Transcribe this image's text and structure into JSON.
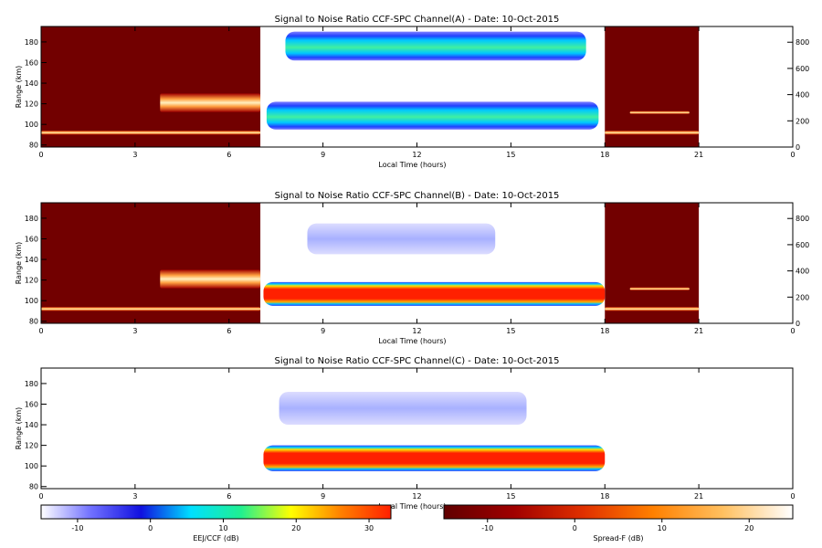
{
  "chart_data": [
    {
      "type": "heatmap",
      "title": "Signal to Noise Ratio CCF-SPC Channel(A) - Date: 10-Oct-2015",
      "xlabel": "Local Time (hours)",
      "ylabel": "Range (km)",
      "xlim": [
        0,
        24
      ],
      "ylim": [
        78,
        195
      ],
      "xticks": [
        "0",
        "3",
        "6",
        "9",
        "12",
        "15",
        "18",
        "21",
        "0"
      ],
      "yticks": [
        80,
        100,
        120,
        140,
        160,
        180
      ],
      "y2ticks": [
        0,
        200,
        400,
        600,
        800
      ],
      "y2lim": [
        0,
        920
      ],
      "spread_f_intervals": [
        [
          0,
          7
        ],
        [
          18,
          21
        ]
      ],
      "ccf_interval": [
        7,
        18
      ],
      "echo_layers": [
        {
          "kind": "ccf",
          "x_start": 7.2,
          "x_end": 17.8,
          "range_low": 95,
          "range_high": 122,
          "peak_db": 16
        },
        {
          "kind": "ccf",
          "x_start": 7.8,
          "x_end": 17.4,
          "range_low": 162,
          "range_high": 190,
          "peak_db": 6
        },
        {
          "kind": "spread",
          "x_start": 0,
          "x_end": 7,
          "range_low": 90,
          "range_high": 94,
          "peak_db": 22
        },
        {
          "kind": "spread",
          "x_start": 18,
          "x_end": 21,
          "range_low": 90,
          "range_high": 94,
          "peak_db": 18
        },
        {
          "kind": "spread",
          "x_start": 3.8,
          "x_end": 7,
          "range_low": 112,
          "range_high": 130,
          "peak_db": 12
        },
        {
          "kind": "spread",
          "x_start": 18.8,
          "x_end": 20.7,
          "range_low": 110,
          "range_high": 113,
          "peak_db": 10
        }
      ]
    },
    {
      "type": "heatmap",
      "title": "Signal to Noise Ratio CCF-SPC Channel(B) - Date: 10-Oct-2015",
      "xlabel": "Local Time (hours)",
      "ylabel": "Range (km)",
      "xlim": [
        0,
        24
      ],
      "ylim": [
        78,
        195
      ],
      "xticks": [
        "0",
        "3",
        "6",
        "9",
        "12",
        "15",
        "18",
        "21",
        "0"
      ],
      "yticks": [
        80,
        100,
        120,
        140,
        160,
        180
      ],
      "y2ticks": [
        0,
        200,
        400,
        600,
        800
      ],
      "y2lim": [
        0,
        920
      ],
      "spread_f_intervals": [
        [
          0,
          7
        ],
        [
          18,
          21
        ]
      ],
      "ccf_interval": [
        7,
        18
      ],
      "echo_layers": [
        {
          "kind": "ccf",
          "x_start": 7.1,
          "x_end": 18,
          "range_low": 95,
          "range_high": 118,
          "peak_db": 30
        },
        {
          "kind": "ccf",
          "x_start": 8.5,
          "x_end": 14.5,
          "range_low": 145,
          "range_high": 175,
          "peak_db": -5
        },
        {
          "kind": "spread",
          "x_start": 0,
          "x_end": 7,
          "range_low": 90,
          "range_high": 94,
          "peak_db": 22
        },
        {
          "kind": "spread",
          "x_start": 18,
          "x_end": 21,
          "range_low": 90,
          "range_high": 94,
          "peak_db": 18
        },
        {
          "kind": "spread",
          "x_start": 3.8,
          "x_end": 7,
          "range_low": 112,
          "range_high": 130,
          "peak_db": 12
        },
        {
          "kind": "spread",
          "x_start": 18.8,
          "x_end": 20.7,
          "range_low": 110,
          "range_high": 113,
          "peak_db": 10
        }
      ]
    },
    {
      "type": "heatmap",
      "title": "Signal to Noise Ratio CCF-SPC Channel(C) - Date: 10-Oct-2015",
      "xlabel": "Local Time (hours)",
      "ylabel": "Range (km)",
      "xlim": [
        0,
        24
      ],
      "ylim": [
        78,
        195
      ],
      "xticks": [
        "0",
        "3",
        "6",
        "9",
        "12",
        "15",
        "18",
        "21",
        "0"
      ],
      "yticks": [
        80,
        100,
        120,
        140,
        160,
        180
      ],
      "ccf_interval": [
        7,
        18
      ],
      "echo_layers": [
        {
          "kind": "ccf",
          "x_start": 7.1,
          "x_end": 18,
          "range_low": 95,
          "range_high": 120,
          "peak_db": 28
        },
        {
          "kind": "ccf",
          "x_start": 7.6,
          "x_end": 15.5,
          "range_low": 140,
          "range_high": 172,
          "peak_db": -6
        }
      ]
    }
  ],
  "colorbars": [
    {
      "label": "EEJ/CCF (dB)",
      "ticks": [
        -10,
        0,
        10,
        20,
        30
      ],
      "range": [
        -15,
        33
      ],
      "stops": [
        "#ffffff",
        "#7070ff",
        "#1010e0",
        "#00e0ff",
        "#20f090",
        "#ffff00",
        "#ff8000",
        "#ff2000"
      ]
    },
    {
      "label": "Spread-F (dB)",
      "ticks": [
        -10,
        0,
        10,
        20
      ],
      "range": [
        -15,
        25
      ],
      "stops": [
        "#600000",
        "#a00000",
        "#e03000",
        "#ff8000",
        "#ffc060",
        "#ffffff"
      ]
    }
  ]
}
